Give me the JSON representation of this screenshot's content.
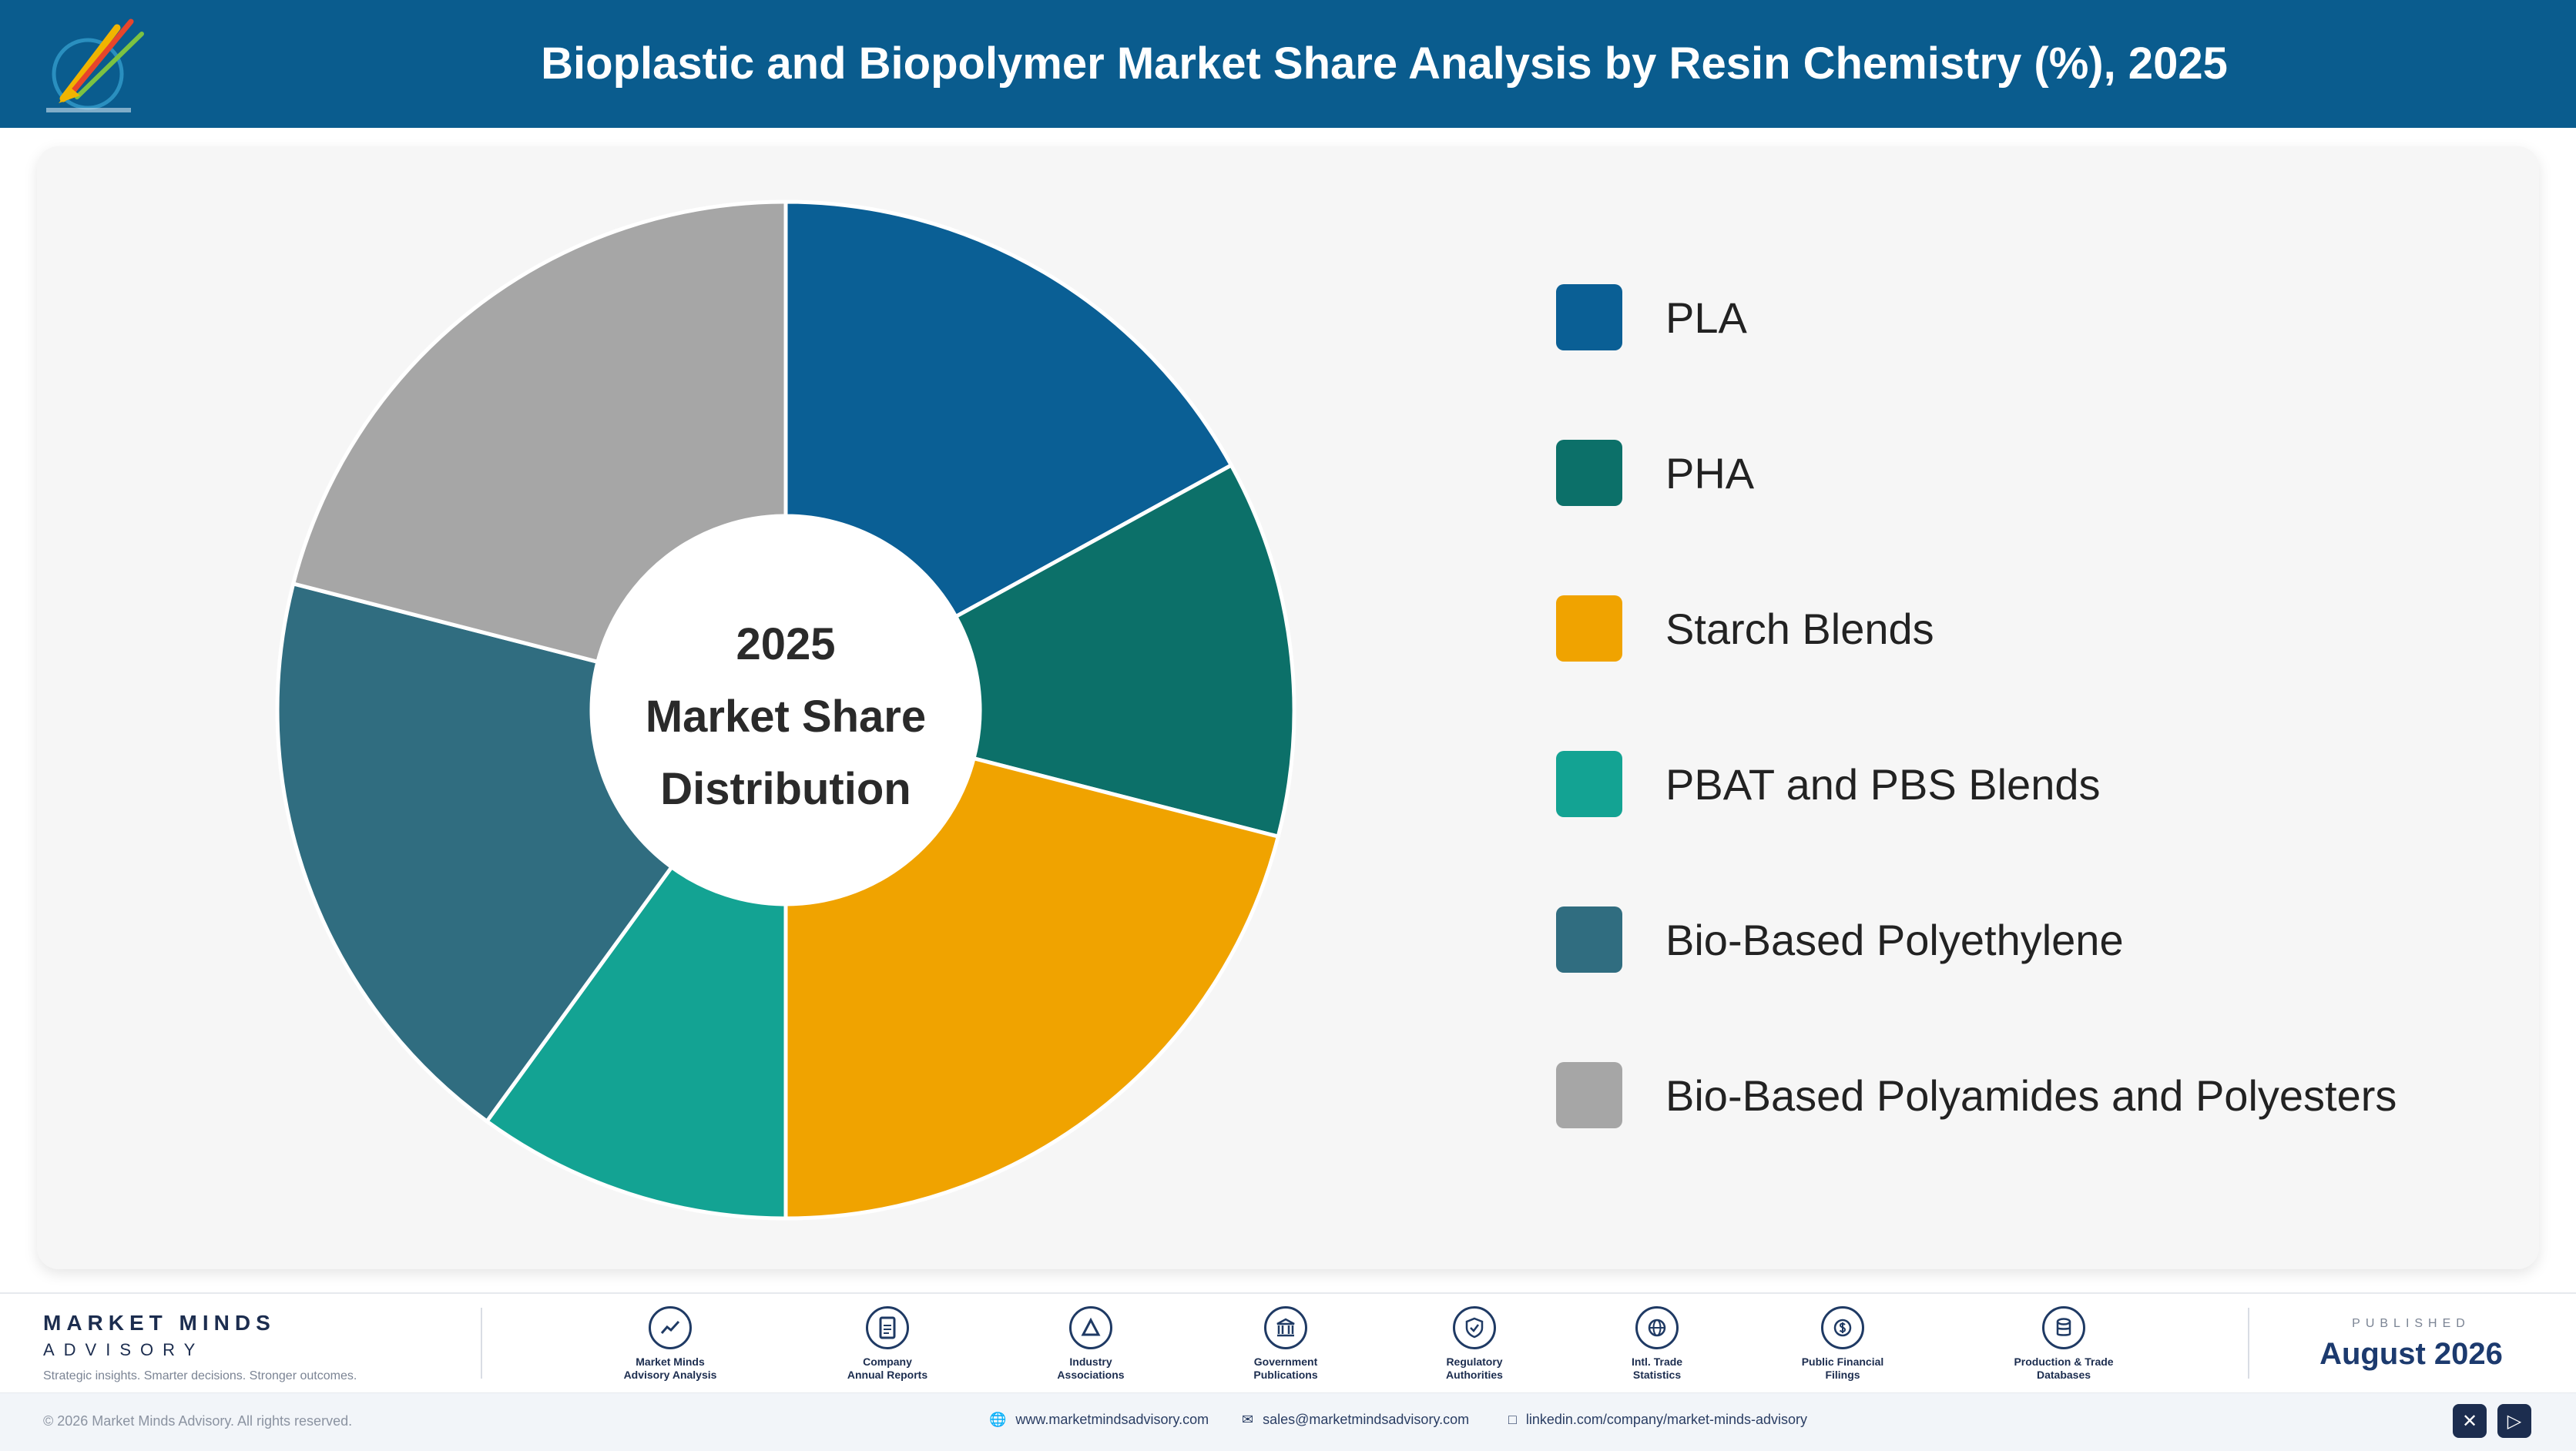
{
  "header": {
    "title": "Bioplastic and Biopolymer Market Share Analysis by Resin Chemistry (%), 2025"
  },
  "center_label": {
    "line1": "2025",
    "line2": "Market Share",
    "line3": "Distribution"
  },
  "chart_data": {
    "type": "pie",
    "title": "Bioplastic and Biopolymer Market Share Analysis by Resin Chemistry (%), 2025",
    "categories": [
      "PLA",
      "PHA",
      "Starch Blends",
      "PBAT and PBS Blends",
      "Bio-Based Polyethylene",
      "Bio-Based Polyamides and Polyesters"
    ],
    "values": [
      17,
      12,
      21,
      10,
      19,
      21
    ],
    "colors": [
      "#0a5f95",
      "#0c7069",
      "#f0a300",
      "#13a393",
      "#306d80",
      "#a6a6a6"
    ],
    "donut": true,
    "legend_position": "right"
  },
  "footer": {
    "brand_name": "MARKET MINDS",
    "brand_sub": "ADVISORY",
    "tagline": "Strategic insights. Smarter decisions. Stronger outcomes.",
    "sources": [
      {
        "line1": "Market Minds",
        "line2": "Advisory Analysis",
        "icon": "chart-line-icon"
      },
      {
        "line1": "Company",
        "line2": "Annual Reports",
        "icon": "document-icon"
      },
      {
        "line1": "Industry",
        "line2": "Associations",
        "icon": "network-icon"
      },
      {
        "line1": "Government",
        "line2": "Publications",
        "icon": "building-icon"
      },
      {
        "line1": "Regulatory",
        "line2": "Authorities",
        "icon": "shield-icon"
      },
      {
        "line1": "Intl. Trade",
        "line2": "Statistics",
        "icon": "globe-icon"
      },
      {
        "line1": "Public Financial",
        "line2": "Filings",
        "icon": "dollar-icon"
      },
      {
        "line1": "Production & Trade",
        "line2": "Databases",
        "icon": "database-icon"
      }
    ],
    "published_label": "PUBLISHED",
    "published_date": "August 2026",
    "copyright": "© 2026 Market Minds Advisory. All rights reserved.",
    "website": "www.marketmindsadvisory.com",
    "email": "sales@marketmindsadvisory.com",
    "linkedin": "linkedin.com/company/market-minds-advisory"
  }
}
